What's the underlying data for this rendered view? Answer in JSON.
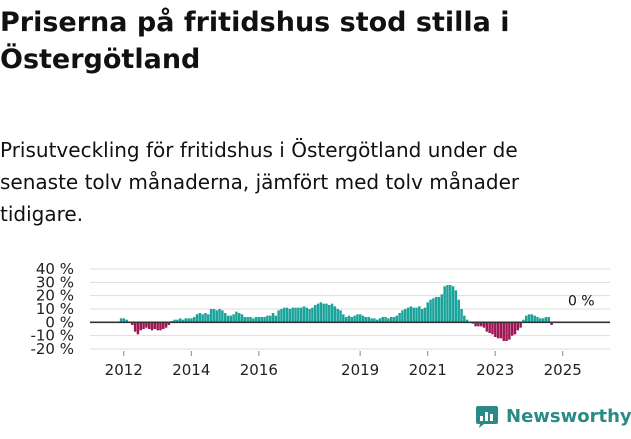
{
  "title": "Priserna på fritidshus stod stilla i Östergötland",
  "subtitle": "Prisutveckling för fritidshus i Östergötland under de senaste tolv månaderna, jämfört med tolv månader tidigare.",
  "brand": {
    "name": "Newsworthy",
    "color": "#2a8a86"
  },
  "chart_data": {
    "type": "bar",
    "y_ticks": [
      "40 %",
      "30 %",
      "20 %",
      "10 %",
      "0 %",
      "-10 %",
      "-20 %"
    ],
    "x_ticks": [
      "2012",
      "2014",
      "2016",
      "2019",
      "2021",
      "2023",
      "2025"
    ],
    "x_range": [
      2011.0,
      2026.4
    ],
    "ylim": [
      -20,
      40
    ],
    "grid": true,
    "colors": {
      "positive": "#1aa39a",
      "negative": "#9e1653",
      "zero_line": "#333333",
      "grid": "#dddddd"
    },
    "annotation": {
      "text": "0 %",
      "x": 2025.55,
      "y": 0
    },
    "series": [
      {
        "start": 2011.92,
        "step": 0.08333,
        "values": [
          3,
          3,
          2,
          0,
          -2,
          -7,
          -9,
          -6,
          -5,
          -4,
          -5,
          -6,
          -5,
          -6,
          -6,
          -5,
          -4,
          -2,
          1,
          2,
          2,
          3,
          2,
          3,
          3,
          3,
          4,
          6,
          7,
          6,
          7,
          6,
          10,
          10,
          9,
          10,
          9,
          7,
          5,
          5,
          6,
          8,
          7,
          6,
          4,
          4,
          4,
          3,
          4,
          4,
          4,
          4,
          5,
          5,
          7,
          5,
          9,
          10,
          11,
          11,
          10,
          11,
          11,
          11,
          11,
          12,
          11,
          10,
          11,
          13,
          14,
          15,
          14,
          14,
          13,
          14,
          12,
          10,
          9,
          6,
          4,
          5,
          4,
          5,
          6,
          6,
          5,
          4,
          4,
          3,
          3,
          2,
          3,
          4,
          4,
          3,
          4,
          4,
          5,
          7,
          9,
          10,
          11,
          12,
          11,
          11,
          12,
          10,
          11,
          15,
          17,
          18,
          19,
          19,
          21,
          27,
          28,
          28,
          27,
          24,
          17,
          10,
          5,
          2,
          0,
          -1,
          -3,
          -3,
          -3,
          -4,
          -7,
          -8,
          -9,
          -11,
          -12,
          -12,
          -14,
          -14,
          -13,
          -10,
          -9,
          -6,
          -4,
          2,
          5,
          6,
          6,
          5,
          4,
          3,
          3,
          4,
          4,
          -2,
          0
        ]
      }
    ]
  }
}
